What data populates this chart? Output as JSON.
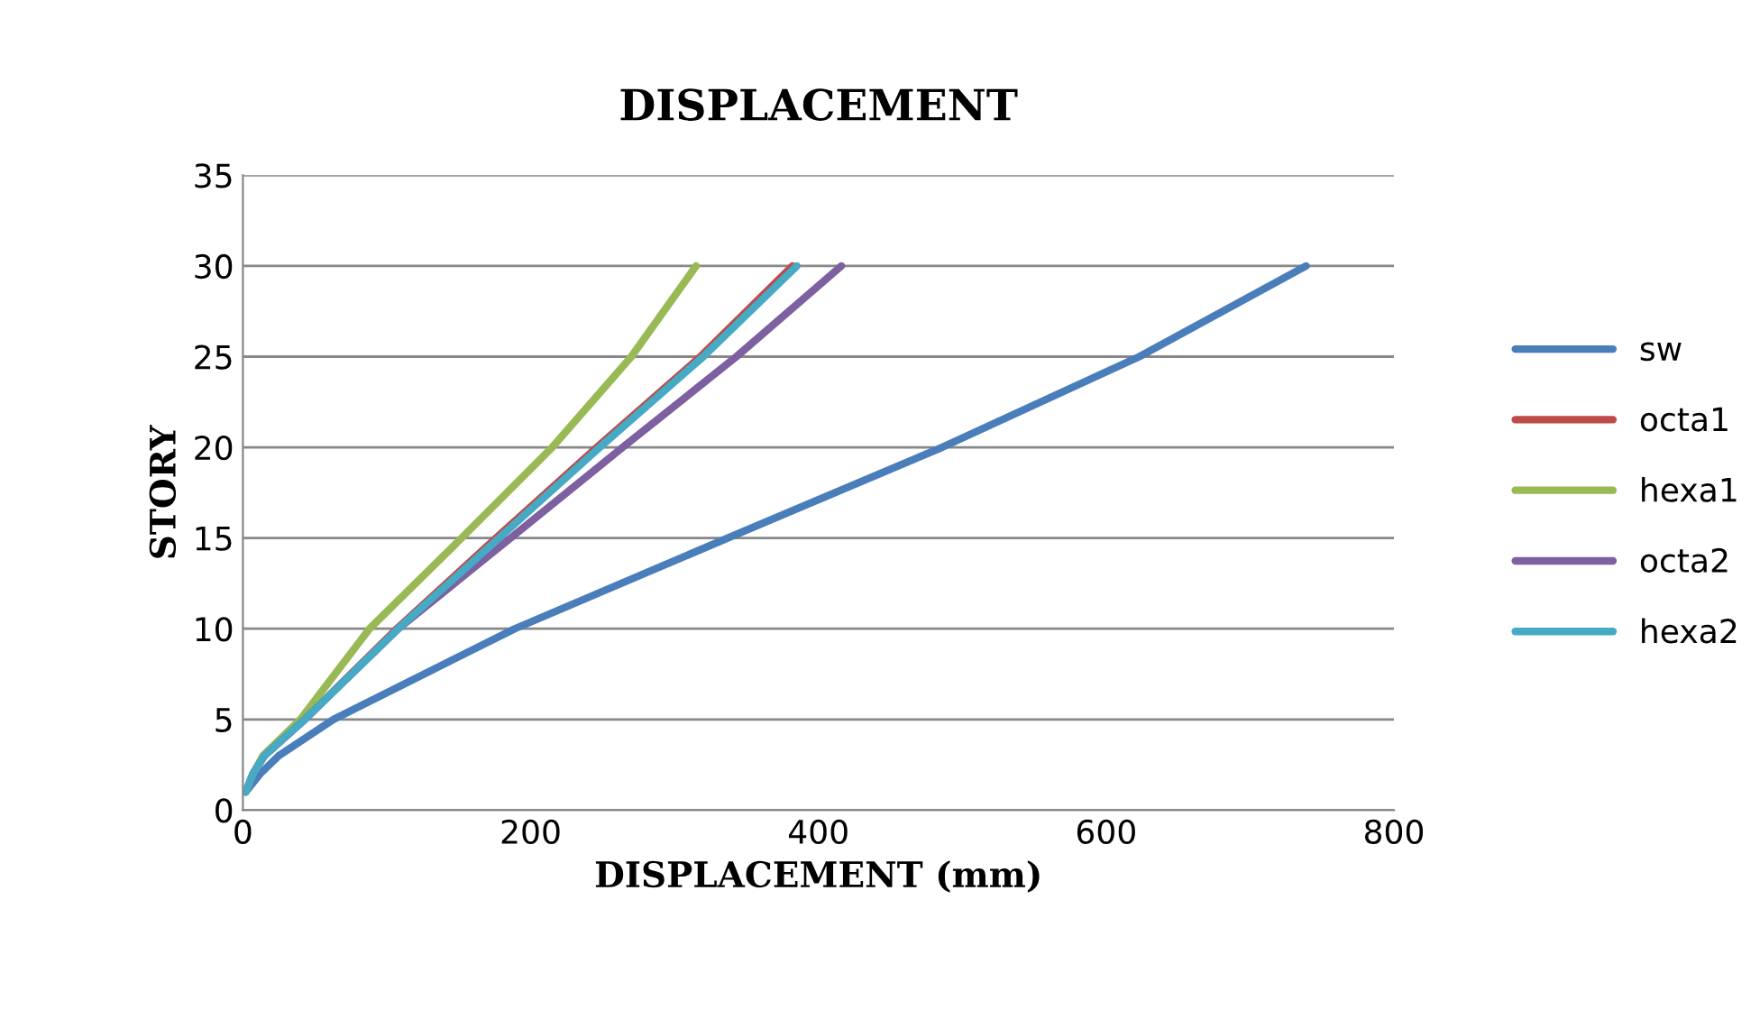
{
  "chart_data": {
    "type": "line",
    "title": "DISPLACEMENT",
    "xlabel": "DISPLACEMENT (mm)",
    "ylabel": "STORY",
    "xlim": [
      0,
      800
    ],
    "xticks": [
      0,
      200,
      400,
      600,
      800
    ],
    "ylim": [
      0,
      35
    ],
    "yticks": [
      0,
      5,
      10,
      15,
      20,
      25,
      30,
      35
    ],
    "grid": "y",
    "legend": "right",
    "marker": "none",
    "line_style": "solid",
    "series": [
      {
        "name": "sw",
        "color": "#4a7ebb",
        "x": [
          2,
          12,
          25,
          63,
          189,
          337,
          486,
          623,
          739
        ],
        "values": [
          1,
          2,
          3,
          5,
          10,
          15,
          20,
          25,
          30
        ]
      },
      {
        "name": "octa1",
        "color": "#be4b48",
        "x": [
          null,
          null,
          15,
          43,
          107,
          176,
          246,
          318,
          382
        ],
        "values": [
          null,
          null,
          3,
          5,
          10,
          15,
          20,
          25,
          30
        ]
      },
      {
        "name": "hexa1",
        "color": "#98b954",
        "x": [
          2,
          7,
          14,
          40,
          88,
          152,
          215,
          270,
          315
        ],
        "values": [
          1,
          2,
          3,
          5,
          10,
          15,
          20,
          25,
          30
        ]
      },
      {
        "name": "octa2",
        "color": "#7d60a0",
        "x": [
          2,
          7,
          15,
          43,
          108,
          186,
          264,
          343,
          416
        ],
        "values": [
          1,
          2,
          3,
          5,
          10,
          15,
          20,
          25,
          30
        ]
      },
      {
        "name": "hexa2",
        "color": "#46aac5",
        "x": [
          2,
          7,
          15,
          43,
          108,
          178,
          248,
          320,
          385
        ],
        "values": [
          1,
          2,
          3,
          5,
          10,
          15,
          20,
          25,
          30
        ]
      }
    ]
  }
}
